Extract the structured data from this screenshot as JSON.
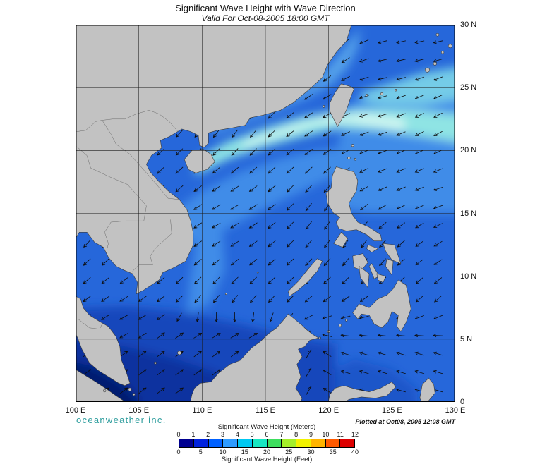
{
  "header": {
    "title": "Significant Wave Height with Wave Direction",
    "subtitle": "Valid For Oct-08-2005 18:00 GMT"
  },
  "axes": {
    "x_labels": [
      "100 E",
      "105 E",
      "110 E",
      "115 E",
      "120 E",
      "125 E",
      "130 E"
    ],
    "y_labels": [
      "30 N",
      "25 N",
      "20 N",
      "15 N",
      "10 N",
      "5 N",
      "0"
    ]
  },
  "branding": {
    "logo_text": "oceanweather inc.",
    "logo_color": "#2f9e9e"
  },
  "plotted_note": "Plotted at Oct08, 2005 12:08 GMT",
  "legend": {
    "meters_label": "Significant Wave Height (Meters)",
    "meters_ticks": [
      "0",
      "1",
      "2",
      "3",
      "4",
      "5",
      "6",
      "7",
      "8",
      "9",
      "10",
      "11",
      "12"
    ],
    "feet_label": "Significant Wave Height (Feet)",
    "feet_ticks": [
      "0",
      "5",
      "10",
      "15",
      "20",
      "25",
      "30",
      "35",
      "40"
    ],
    "colorbar_colors": [
      "#000090",
      "#0022dd",
      "#0061ff",
      "#2e9bff",
      "#00c8f2",
      "#17e7c2",
      "#3ede5e",
      "#a4ef2a",
      "#f2f200",
      "#ffb400",
      "#ff5a00",
      "#dd0000"
    ]
  },
  "map": {
    "lon_min": 100,
    "lon_max": 130,
    "lat_min": 0,
    "lat_max": 30,
    "grid_step_deg": 5,
    "palette": {
      "land": "#c2c2c2",
      "coast": "#3c3c3c",
      "border": "#6a6a6a",
      "grid": "#1c1c1c",
      "arrow": "#0d0d0d",
      "ocean_base": "#2667da",
      "ocean_light": "#3f8ce8",
      "coastal_light": "#55a2ea",
      "pacific_cyan": "#74cce8",
      "wave_band": "#8fe4e4",
      "wave_band_core": "#dcfaf4",
      "ocean_moderate": "#1647bb",
      "ocean_calm": "#0d339f",
      "ocean_calmest": "#041a70"
    }
  }
}
